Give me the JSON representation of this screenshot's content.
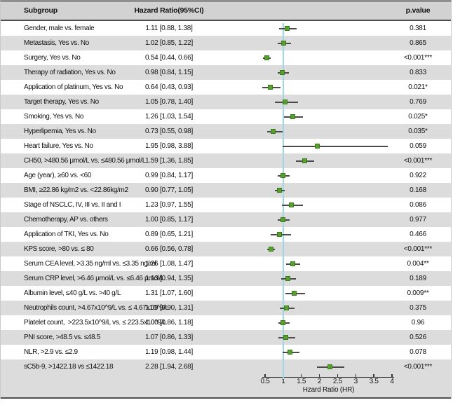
{
  "chart_data": {
    "type": "forest",
    "columns": [
      "Subgroup",
      "Hazard Ratio(95%CI)",
      "p.value"
    ],
    "xlabel": "Hzard Ratio (HR)",
    "xlim": [
      0.5,
      4
    ],
    "x_ticks": [
      0.5,
      1,
      1.5,
      2,
      2.5,
      3,
      3.5,
      4
    ],
    "x_tick_labels": [
      "0.5",
      "1",
      "1.5",
      "2",
      "2.5",
      "3",
      "3.5",
      "4"
    ],
    "reference_line": 1,
    "grid": false,
    "rows": [
      {
        "subgroup": "Gender, male vs. female",
        "hr_text": "1.11 [0.88, 1.38]",
        "hr": 1.11,
        "low": 0.88,
        "high": 1.38,
        "p": "0.381"
      },
      {
        "subgroup": "Metastasis, Yes vs. No",
        "hr_text": "1.02 [0.85, 1.22]",
        "hr": 1.02,
        "low": 0.85,
        "high": 1.22,
        "p": "0.865"
      },
      {
        "subgroup": "Surgery, Yes vs. No",
        "hr_text": "0.54 [0.44, 0.66]",
        "hr": 0.54,
        "low": 0.44,
        "high": 0.66,
        "p": "<0.001***"
      },
      {
        "subgroup": "Therapy of radiation, Yes vs. No",
        "hr_text": "0.98 [0.84, 1.15]",
        "hr": 0.98,
        "low": 0.84,
        "high": 1.15,
        "p": "0.833"
      },
      {
        "subgroup": "Application of platinum, Yes vs. No",
        "hr_text": "0.64 [0.43, 0.93]",
        "hr": 0.64,
        "low": 0.43,
        "high": 0.93,
        "p": "0.021*"
      },
      {
        "subgroup": "Target therapy, Yes vs. No",
        "hr_text": "1.05 [0.78, 1.40]",
        "hr": 1.05,
        "low": 0.78,
        "high": 1.4,
        "p": "0.769"
      },
      {
        "subgroup": "Smoking, Yes vs. No",
        "hr_text": "1.26 [1.03, 1.54]",
        "hr": 1.26,
        "low": 1.03,
        "high": 1.54,
        "p": "0.025*"
      },
      {
        "subgroup": "Hyperlipemia, Yes vs. No",
        "hr_text": "0.73 [0.55, 0.98]",
        "hr": 0.73,
        "low": 0.55,
        "high": 0.98,
        "p": "0.035*"
      },
      {
        "subgroup": "Heart failure, Yes vs. No",
        "hr_text": "1.95 [0.98, 3.88]",
        "hr": 1.95,
        "low": 0.98,
        "high": 3.88,
        "p": "0.059"
      },
      {
        "subgroup": "CH50, >480.56 μmol/L vs. ≤480.56 μmol/L",
        "hr_text": "1.59 [1.36, 1.85]",
        "hr": 1.59,
        "low": 1.36,
        "high": 1.85,
        "p": "<0.001***"
      },
      {
        "subgroup": "Age (year), ≥60 vs. <60",
        "hr_text": "0.99 [0.84, 1.17]",
        "hr": 0.99,
        "low": 0.84,
        "high": 1.17,
        "p": "0.922"
      },
      {
        "subgroup": "BMI, ≥22.86 kg/m2 vs. <22.86kg/m2",
        "hr_text": "0.90 [0.77, 1.05]",
        "hr": 0.9,
        "low": 0.77,
        "high": 1.05,
        "p": "0.168"
      },
      {
        "subgroup": "Stage of NSCLC, IV, III vs. II and I",
        "hr_text": "1.23 [0.97, 1.55]",
        "hr": 1.23,
        "low": 0.97,
        "high": 1.55,
        "p": "0.086"
      },
      {
        "subgroup": "Chemotherapy, AP vs. others",
        "hr_text": "1.00 [0.85, 1.17]",
        "hr": 1.0,
        "low": 0.85,
        "high": 1.17,
        "p": "0.977"
      },
      {
        "subgroup": "Application of TKI, Yes vs. No",
        "hr_text": "0.89 [0.65, 1.21]",
        "hr": 0.89,
        "low": 0.65,
        "high": 1.21,
        "p": "0.466"
      },
      {
        "subgroup": "KPS score, >80 vs. ≤ 80",
        "hr_text": "0.66 [0.56, 0.78]",
        "hr": 0.66,
        "low": 0.56,
        "high": 0.78,
        "p": "<0.001***"
      },
      {
        "subgroup": "Serum CEA level, >3.35 ng/ml vs. ≤3.35 ng/ml",
        "hr_text": "1.26 [1.08, 1.47]",
        "hr": 1.26,
        "low": 1.08,
        "high": 1.47,
        "p": "0.004**"
      },
      {
        "subgroup": "Serum CRP level, >6.46 μmol/L vs. ≤6.46 μmol/L",
        "hr_text": "1.13 [0.94, 1.35]",
        "hr": 1.13,
        "low": 0.94,
        "high": 1.35,
        "p": "0.189"
      },
      {
        "subgroup": "Albumin level, ≤40 g/L vs. >40 g/L",
        "hr_text": "1.31 [1.07, 1.60]",
        "hr": 1.31,
        "low": 1.07,
        "high": 1.6,
        "p": "0.009**"
      },
      {
        "subgroup": "Neutrophils count, >4.67x10^9/L vs. ≤ 4.67x10^9/L",
        "hr_text": "1.09 [0.90, 1.31]",
        "hr": 1.09,
        "low": 0.9,
        "high": 1.31,
        "p": "0.375"
      },
      {
        "subgroup": "Platelet count,  >223.5x10^9/L vs. ≤ 223.5x10^9/L",
        "hr_text": "1.00 [0.86, 1.18]",
        "hr": 1.0,
        "low": 0.86,
        "high": 1.18,
        "p": "0.96"
      },
      {
        "subgroup": "PNI score, >48.5 vs. ≤48.5",
        "hr_text": "1.07 [0.86, 1.33]",
        "hr": 1.07,
        "low": 0.86,
        "high": 1.33,
        "p": "0.526"
      },
      {
        "subgroup": "NLR, >2.9 vs. ≤2.9",
        "hr_text": "1.19 [0.98, 1.44]",
        "hr": 1.19,
        "low": 0.98,
        "high": 1.44,
        "p": "0.078"
      },
      {
        "subgroup": "sC5b-9, >1422.18 vs ≤1422.18",
        "hr_text": "2.28 [1.94, 2.68]",
        "hr": 2.28,
        "low": 1.94,
        "high": 2.68,
        "p": "<0.001***"
      }
    ]
  },
  "colors": {
    "marker_green": "#579f2f",
    "marker_green_border": "#3a7a1a",
    "ci_line": "#4a4a4a",
    "reference_line_cyan": "#9fd8e5",
    "row_gray": "#dcdcdc",
    "header_gray": "#d2d2d2"
  }
}
